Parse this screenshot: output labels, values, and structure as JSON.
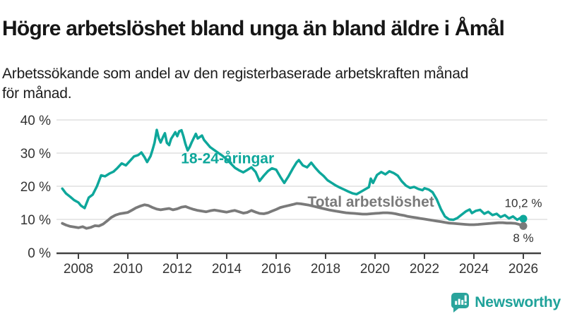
{
  "header": {
    "title": "Högre arbetslöshet bland unga än bland äldre i Åmål",
    "subtitle": "Arbetssökande som andel av den registerbaserade arbetskraften månad\nför månad."
  },
  "footer": {
    "brand": "Newsworthy",
    "brand_color": "#1fa29a",
    "logo_icon": "bar-chart-speech-bubble-icon"
  },
  "colors": {
    "youth_line": "#0ea79b",
    "total_line": "#7a7a7a",
    "axis_text": "#333333",
    "gridline": "#d9d9d9",
    "axis_line": "#424242",
    "value_label": "#333333"
  },
  "chart_data": {
    "type": "line",
    "title": "Högre arbetslöshet bland unga än bland äldre i Åmål",
    "subtitle": "Arbetssökande som andel av den registerbaserade arbetskraften månad för månad.",
    "xlabel": "",
    "ylabel": "",
    "unit": "%",
    "ylim": [
      0,
      40
    ],
    "xlim": [
      2007.3,
      2026.3
    ],
    "grid": "horizontal",
    "legend_position": "inline-labels",
    "yticks": {
      "values": [
        0,
        10,
        20,
        30,
        40
      ],
      "labels": [
        "0 %",
        "10 %",
        "20 %",
        "30 %",
        "40 %"
      ]
    },
    "xticks": {
      "values": [
        2008,
        2010,
        2012,
        2014,
        2016,
        2018,
        2020,
        2022,
        2024,
        2026
      ],
      "labels": [
        "2008",
        "2010",
        "2012",
        "2014",
        "2016",
        "2018",
        "2020",
        "2022",
        "2024",
        "2026"
      ]
    },
    "series": [
      {
        "name": "18-24-åringar",
        "color": "#0ea79b",
        "stroke_width": 3.5,
        "end_label": "10,2 %",
        "end_label_offset": [
          0,
          -21
        ],
        "inline_label": {
          "text": "18-24-åringar",
          "year": 2012.15,
          "value": 28.1,
          "anchor": "start"
        },
        "points": [
          [
            2007.35,
            19.3
          ],
          [
            2007.5,
            17.8
          ],
          [
            2007.67,
            16.8
          ],
          [
            2007.83,
            15.8
          ],
          [
            2008.0,
            15.1
          ],
          [
            2008.1,
            14.2
          ],
          [
            2008.25,
            13.4
          ],
          [
            2008.42,
            16.6
          ],
          [
            2008.58,
            17.5
          ],
          [
            2008.75,
            20.0
          ],
          [
            2008.92,
            23.3
          ],
          [
            2009.08,
            23.0
          ],
          [
            2009.25,
            23.8
          ],
          [
            2009.42,
            24.4
          ],
          [
            2009.58,
            25.5
          ],
          [
            2009.75,
            26.9
          ],
          [
            2009.92,
            26.3
          ],
          [
            2010.08,
            27.6
          ],
          [
            2010.25,
            29.0
          ],
          [
            2010.42,
            29.4
          ],
          [
            2010.55,
            30.2
          ],
          [
            2010.67,
            28.8
          ],
          [
            2010.78,
            27.3
          ],
          [
            2010.92,
            29.1
          ],
          [
            2011.0,
            31.0
          ],
          [
            2011.08,
            33.1
          ],
          [
            2011.17,
            37.0
          ],
          [
            2011.25,
            34.5
          ],
          [
            2011.33,
            33.2
          ],
          [
            2011.42,
            34.8
          ],
          [
            2011.5,
            36.0
          ],
          [
            2011.58,
            33.1
          ],
          [
            2011.67,
            32.4
          ],
          [
            2011.75,
            34.3
          ],
          [
            2011.83,
            35.2
          ],
          [
            2011.92,
            36.3
          ],
          [
            2012.0,
            35.1
          ],
          [
            2012.08,
            36.6
          ],
          [
            2012.17,
            36.9
          ],
          [
            2012.25,
            35.0
          ],
          [
            2012.33,
            32.8
          ],
          [
            2012.42,
            30.8
          ],
          [
            2012.5,
            31.8
          ],
          [
            2012.58,
            33.2
          ],
          [
            2012.67,
            34.6
          ],
          [
            2012.75,
            35.8
          ],
          [
            2012.83,
            34.4
          ],
          [
            2012.92,
            34.9
          ],
          [
            2013.0,
            35.3
          ],
          [
            2013.08,
            34.0
          ],
          [
            2013.17,
            33.2
          ],
          [
            2013.33,
            31.8
          ],
          [
            2013.5,
            30.9
          ],
          [
            2013.67,
            30.0
          ],
          [
            2013.83,
            29.2
          ],
          [
            2014.0,
            28.1
          ],
          [
            2014.17,
            26.8
          ],
          [
            2014.33,
            25.6
          ],
          [
            2014.5,
            24.8
          ],
          [
            2014.67,
            24.2
          ],
          [
            2014.83,
            24.9
          ],
          [
            2015.0,
            25.7
          ],
          [
            2015.17,
            24.3
          ],
          [
            2015.33,
            21.6
          ],
          [
            2015.5,
            23.2
          ],
          [
            2015.67,
            24.6
          ],
          [
            2015.83,
            25.4
          ],
          [
            2016.0,
            25.0
          ],
          [
            2016.17,
            22.8
          ],
          [
            2016.33,
            21.0
          ],
          [
            2016.5,
            23.0
          ],
          [
            2016.67,
            25.3
          ],
          [
            2016.83,
            27.2
          ],
          [
            2016.92,
            27.9
          ],
          [
            2017.08,
            26.3
          ],
          [
            2017.25,
            25.7
          ],
          [
            2017.42,
            27.1
          ],
          [
            2017.58,
            25.6
          ],
          [
            2017.75,
            24.2
          ],
          [
            2017.92,
            23.1
          ],
          [
            2018.08,
            21.8
          ],
          [
            2018.25,
            21.0
          ],
          [
            2018.42,
            20.2
          ],
          [
            2018.58,
            19.6
          ],
          [
            2018.75,
            19.0
          ],
          [
            2018.92,
            18.4
          ],
          [
            2019.08,
            17.9
          ],
          [
            2019.25,
            17.6
          ],
          [
            2019.42,
            18.3
          ],
          [
            2019.58,
            19.0
          ],
          [
            2019.75,
            19.7
          ],
          [
            2019.83,
            22.3
          ],
          [
            2019.92,
            21.0
          ],
          [
            2020.08,
            23.4
          ],
          [
            2020.25,
            24.3
          ],
          [
            2020.42,
            23.6
          ],
          [
            2020.58,
            24.5
          ],
          [
            2020.75,
            24.0
          ],
          [
            2020.92,
            23.2
          ],
          [
            2021.08,
            21.5
          ],
          [
            2021.25,
            20.2
          ],
          [
            2021.42,
            19.5
          ],
          [
            2021.58,
            19.8
          ],
          [
            2021.75,
            19.2
          ],
          [
            2021.92,
            18.8
          ],
          [
            2022.0,
            19.4
          ],
          [
            2022.17,
            19.0
          ],
          [
            2022.33,
            18.2
          ],
          [
            2022.5,
            16.0
          ],
          [
            2022.67,
            13.0
          ],
          [
            2022.83,
            10.9
          ],
          [
            2023.0,
            10.0
          ],
          [
            2023.17,
            9.9
          ],
          [
            2023.33,
            10.4
          ],
          [
            2023.5,
            11.4
          ],
          [
            2023.67,
            12.4
          ],
          [
            2023.83,
            13.0
          ],
          [
            2023.92,
            11.9
          ],
          [
            2024.08,
            12.6
          ],
          [
            2024.25,
            12.9
          ],
          [
            2024.42,
            11.7
          ],
          [
            2024.58,
            12.3
          ],
          [
            2024.75,
            11.3
          ],
          [
            2024.92,
            11.7
          ],
          [
            2025.08,
            10.7
          ],
          [
            2025.25,
            11.3
          ],
          [
            2025.42,
            10.3
          ],
          [
            2025.58,
            10.9
          ],
          [
            2025.75,
            9.9
          ],
          [
            2025.92,
            10.6
          ],
          [
            2026.0,
            10.2
          ]
        ]
      },
      {
        "name": "Total arbetslöshet",
        "color": "#7a7a7a",
        "stroke_width": 3.8,
        "end_label": "8 %",
        "end_label_offset": [
          0,
          18
        ],
        "inline_label": {
          "text": "Total arbetslöshet",
          "year": 2017.27,
          "value": 15.0,
          "anchor": "start"
        },
        "points": [
          [
            2007.35,
            8.8
          ],
          [
            2007.5,
            8.3
          ],
          [
            2007.67,
            7.9
          ],
          [
            2007.83,
            7.7
          ],
          [
            2008.0,
            7.5
          ],
          [
            2008.17,
            7.8
          ],
          [
            2008.33,
            7.3
          ],
          [
            2008.5,
            7.6
          ],
          [
            2008.67,
            8.1
          ],
          [
            2008.83,
            8.0
          ],
          [
            2009.0,
            8.6
          ],
          [
            2009.17,
            9.6
          ],
          [
            2009.33,
            10.6
          ],
          [
            2009.5,
            11.3
          ],
          [
            2009.67,
            11.7
          ],
          [
            2009.83,
            11.9
          ],
          [
            2010.0,
            12.1
          ],
          [
            2010.17,
            12.8
          ],
          [
            2010.33,
            13.5
          ],
          [
            2010.5,
            14.0
          ],
          [
            2010.67,
            14.4
          ],
          [
            2010.83,
            14.2
          ],
          [
            2011.0,
            13.6
          ],
          [
            2011.17,
            13.1
          ],
          [
            2011.33,
            12.9
          ],
          [
            2011.5,
            13.1
          ],
          [
            2011.67,
            13.3
          ],
          [
            2011.83,
            12.9
          ],
          [
            2012.0,
            13.2
          ],
          [
            2012.17,
            13.7
          ],
          [
            2012.33,
            13.9
          ],
          [
            2012.5,
            13.4
          ],
          [
            2012.67,
            13.0
          ],
          [
            2012.83,
            12.7
          ],
          [
            2013.0,
            12.5
          ],
          [
            2013.17,
            12.3
          ],
          [
            2013.33,
            12.6
          ],
          [
            2013.5,
            12.8
          ],
          [
            2013.67,
            12.6
          ],
          [
            2013.83,
            12.4
          ],
          [
            2014.0,
            12.2
          ],
          [
            2014.17,
            12.5
          ],
          [
            2014.33,
            12.7
          ],
          [
            2014.5,
            12.3
          ],
          [
            2014.67,
            11.9
          ],
          [
            2014.83,
            12.1
          ],
          [
            2015.0,
            12.7
          ],
          [
            2015.17,
            12.2
          ],
          [
            2015.33,
            11.8
          ],
          [
            2015.5,
            11.7
          ],
          [
            2015.67,
            12.0
          ],
          [
            2015.83,
            12.5
          ],
          [
            2016.0,
            13.0
          ],
          [
            2016.17,
            13.6
          ],
          [
            2016.33,
            13.9
          ],
          [
            2016.5,
            14.2
          ],
          [
            2016.67,
            14.5
          ],
          [
            2016.83,
            14.8
          ],
          [
            2017.0,
            14.7
          ],
          [
            2017.17,
            14.5
          ],
          [
            2017.33,
            14.3
          ],
          [
            2017.5,
            14.0
          ],
          [
            2017.67,
            13.7
          ],
          [
            2017.83,
            13.4
          ],
          [
            2018.0,
            13.1
          ],
          [
            2018.17,
            12.8
          ],
          [
            2018.33,
            12.6
          ],
          [
            2018.5,
            12.4
          ],
          [
            2018.67,
            12.2
          ],
          [
            2018.83,
            12.0
          ],
          [
            2019.0,
            11.9
          ],
          [
            2019.17,
            11.8
          ],
          [
            2019.33,
            11.7
          ],
          [
            2019.5,
            11.6
          ],
          [
            2019.67,
            11.6
          ],
          [
            2019.83,
            11.7
          ],
          [
            2020.0,
            11.8
          ],
          [
            2020.17,
            11.9
          ],
          [
            2020.33,
            12.0
          ],
          [
            2020.5,
            12.0
          ],
          [
            2020.67,
            11.9
          ],
          [
            2020.83,
            11.7
          ],
          [
            2021.0,
            11.4
          ],
          [
            2021.17,
            11.2
          ],
          [
            2021.33,
            10.9
          ],
          [
            2021.5,
            10.7
          ],
          [
            2021.67,
            10.5
          ],
          [
            2021.83,
            10.3
          ],
          [
            2022.0,
            10.1
          ],
          [
            2022.17,
            9.9
          ],
          [
            2022.33,
            9.7
          ],
          [
            2022.5,
            9.5
          ],
          [
            2022.67,
            9.3
          ],
          [
            2022.83,
            9.1
          ],
          [
            2023.0,
            8.9
          ],
          [
            2023.17,
            8.8
          ],
          [
            2023.33,
            8.7
          ],
          [
            2023.5,
            8.6
          ],
          [
            2023.67,
            8.5
          ],
          [
            2023.83,
            8.4
          ],
          [
            2024.0,
            8.4
          ],
          [
            2024.17,
            8.5
          ],
          [
            2024.33,
            8.6
          ],
          [
            2024.5,
            8.7
          ],
          [
            2024.67,
            8.8
          ],
          [
            2024.83,
            8.9
          ],
          [
            2025.0,
            9.0
          ],
          [
            2025.17,
            9.0
          ],
          [
            2025.33,
            8.9
          ],
          [
            2025.5,
            8.9
          ],
          [
            2025.67,
            8.8
          ],
          [
            2025.83,
            8.5
          ],
          [
            2026.0,
            8.0
          ]
        ]
      }
    ]
  }
}
